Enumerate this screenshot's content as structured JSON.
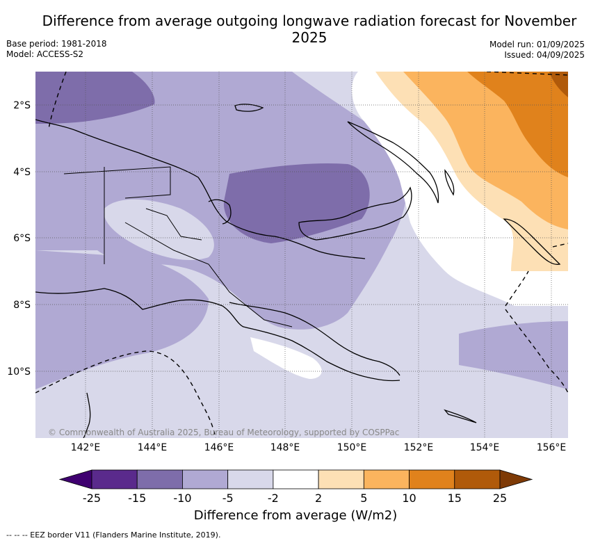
{
  "title": "Difference from average outgoing longwave radiation forecast for November 2025",
  "meta_left": {
    "base_period": "Base period: 1981-2018",
    "model": "Model: ACCESS-S2"
  },
  "meta_right": {
    "model_run": "Model run: 01/09/2025",
    "issued": "Issued: 04/09/2025"
  },
  "map": {
    "lat_ticks": [
      "2°S",
      "4°S",
      "6°S",
      "8°S",
      "10°S"
    ],
    "lon_ticks": [
      "142°E",
      "144°E",
      "146°E",
      "148°E",
      "150°E",
      "152°E",
      "154°E",
      "156°E"
    ],
    "credit": "© Commonwealth of Australia 2025, Bureau of Meteorology, supported by COSPPac",
    "region": "Papua New Guinea",
    "gridlines": true
  },
  "colorbar": {
    "title": "Difference from average (W/m2)",
    "labels": [
      "-25",
      "-15",
      "-10",
      "-5",
      "-2",
      "2",
      "5",
      "10",
      "15",
      "25"
    ],
    "colors": [
      "#3f0070",
      "#5a2a8c",
      "#7e6daa",
      "#b0a9d3",
      "#d8d8ea",
      "#ffffff",
      "#fde0b5",
      "#fbb45e",
      "#e0821c",
      "#b05a0a",
      "#7e3a06"
    ]
  },
  "footnote": "-- -- -- EEZ border V11 (Flanders Marine Institute, 2019)."
}
